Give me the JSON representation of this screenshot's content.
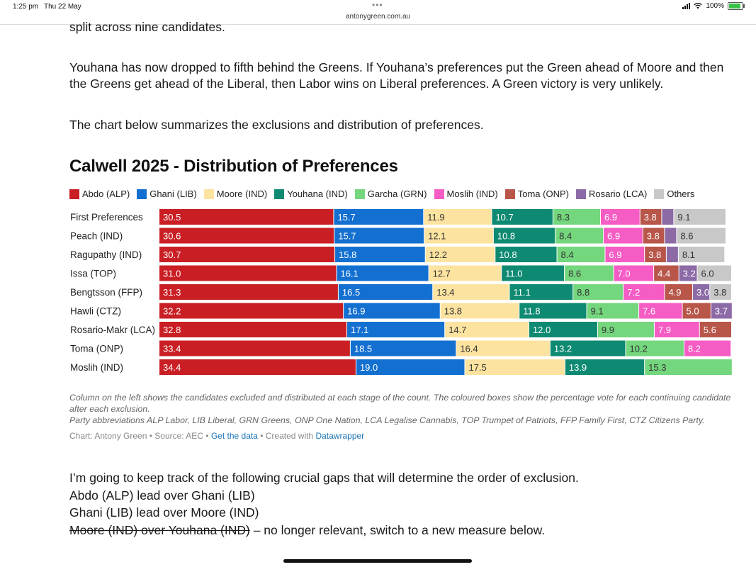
{
  "status": {
    "time": "1:25 pm",
    "date": "Thu 22 May",
    "url": "antonygreen.com.au",
    "battery": "100%"
  },
  "article": {
    "cut_line": "split across nine candidates.",
    "para1": "Youhana has now dropped to fifth behind the Greens. If Youhana’s preferences put the Green ahead of Moore and then the Greens get ahead of the Liberal, then Labor wins on Liberal preferences. A Green victory is very unlikely.",
    "para2": "The chart below summarizes the exclusions and distribution of preferences.",
    "para3_line1": "I’m going to keep track of the following crucial gaps that will determine the order of exclusion.",
    "para3_line2": "Abdo (ALP) lead over Ghani (LIB)",
    "para3_line3": "Ghani (LIB) lead over Moore (IND)",
    "para3_strike": "Moore (IND) over Youhana (IND)",
    "para3_rest": " – no longer relevant, switch to a new measure below."
  },
  "chart_meta": {
    "note1": "Column on the left shows the candidates excluded and distributed at each stage of the count. The coloured boxes show the percentage vote for each continuing candidate after each exclusion.",
    "note2": "Party abbreviations ALP Labor, LIB Liberal, GRN Greens, ONP One Nation, LCA Legalise Cannabis, TOP Trumpet of Patriots, FFP Family First, CTZ Citizens Party.",
    "credit_prefix": "Chart: Antony Green • Source: AEC • ",
    "credit_link1": "Get the data",
    "credit_mid": " • Created with ",
    "credit_link2": "Datawrapper"
  },
  "chart_data": {
    "type": "bar",
    "stacked": true,
    "orientation": "horizontal",
    "title": "Calwell 2025 - Distribution of Preferences",
    "xlim": [
      0,
      100
    ],
    "legend_position": "top",
    "grid": false,
    "categories": [
      "First Preferences",
      "Peach (IND)",
      "Ragupathy (IND)",
      "Issa (TOP)",
      "Bengtsson (FFP)",
      "Hawli (CTZ)",
      "Rosario-Makr (LCA)",
      "Toma (ONP)",
      "Moslih (IND)"
    ],
    "series": [
      {
        "name": "Abdo (ALP)",
        "color": "#c91f24",
        "text": "light",
        "values": [
          30.5,
          30.6,
          30.7,
          31.0,
          31.3,
          32.2,
          32.8,
          33.4,
          34.4
        ]
      },
      {
        "name": "Ghani (LIB)",
        "color": "#1470d0",
        "text": "light",
        "values": [
          15.7,
          15.7,
          15.8,
          16.1,
          16.5,
          16.9,
          17.1,
          18.5,
          19.0
        ]
      },
      {
        "name": "Moore (IND)",
        "color": "#fde3a0",
        "text": "dark",
        "values": [
          11.9,
          12.1,
          12.2,
          12.7,
          13.4,
          13.8,
          14.7,
          16.4,
          17.5
        ]
      },
      {
        "name": "Youhana (IND)",
        "color": "#0f8a72",
        "text": "light",
        "values": [
          10.7,
          10.8,
          10.8,
          11.0,
          11.1,
          11.8,
          12.0,
          13.2,
          13.9
        ]
      },
      {
        "name": "Garcha (GRN)",
        "color": "#74d67d",
        "text": "dark",
        "values": [
          8.3,
          8.4,
          8.4,
          8.6,
          8.8,
          9.1,
          9.9,
          10.2,
          15.3
        ]
      },
      {
        "name": "Moslih (IND)",
        "color": "#f55cc4",
        "text": "light",
        "values": [
          6.9,
          6.9,
          6.9,
          7.0,
          7.2,
          7.6,
          7.9,
          8.2,
          null
        ]
      },
      {
        "name": "Toma (ONP)",
        "color": "#b8564a",
        "text": "light",
        "values": [
          3.8,
          3.8,
          3.8,
          4.4,
          4.9,
          5.0,
          5.6,
          null,
          null
        ]
      },
      {
        "name": "Rosario (LCA)",
        "color": "#8c6aa6",
        "text": "light",
        "values": [
          2.1,
          2.1,
          2.1,
          3.2,
          3.0,
          3.7,
          null,
          null,
          null
        ]
      },
      {
        "name": "Others",
        "color": "#c8c8c8",
        "text": "dark",
        "values": [
          9.1,
          8.6,
          8.1,
          6.0,
          3.8,
          null,
          null,
          null,
          null
        ]
      }
    ],
    "labels_shown": [
      [
        true,
        true,
        true,
        true,
        true,
        true,
        true,
        true,
        true
      ],
      [
        true,
        true,
        true,
        true,
        true,
        true,
        true,
        true,
        true
      ],
      [
        true,
        true,
        true,
        true,
        true,
        true,
        true,
        true,
        true
      ],
      [
        true,
        true,
        true,
        true,
        true,
        true,
        true,
        true,
        true
      ],
      [
        true,
        true,
        true,
        true,
        true,
        true,
        true,
        true,
        true
      ],
      [
        true,
        true,
        true,
        true,
        true,
        true,
        true,
        true,
        true
      ],
      [
        true,
        true,
        true,
        true,
        true,
        true,
        true,
        true,
        true
      ],
      [
        true,
        true,
        true,
        true,
        true,
        true,
        true,
        true,
        true
      ],
      [
        true,
        true,
        true,
        true,
        true,
        true,
        true,
        true,
        true
      ]
    ]
  }
}
